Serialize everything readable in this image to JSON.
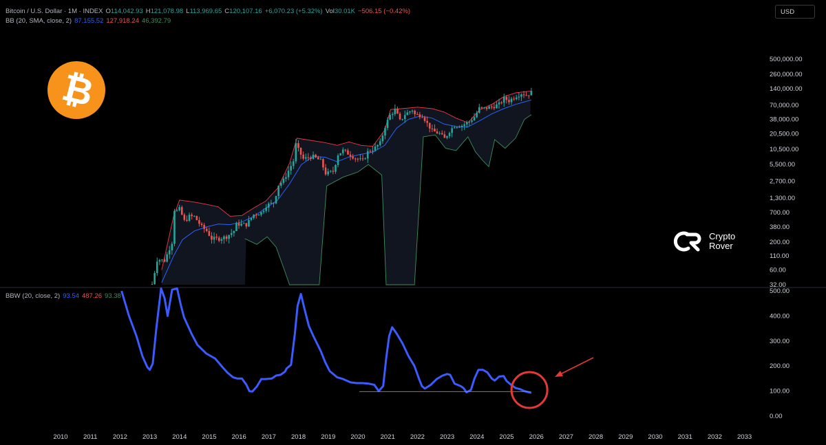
{
  "header": {
    "symbol": "Bitcoin / U.S. Dollar · 1M · INDEX",
    "open_label": "O",
    "open": "114,042.93",
    "high_label": "H",
    "high": "121,078.98",
    "low_label": "L",
    "low": "113,969.65",
    "close_label": "C",
    "close": "120,107.16",
    "change": "+6,070.23 (+5.32%)",
    "vol_label": "Vol",
    "vol": "30.01K",
    "vol_change": "−506.15 (−0.42%)"
  },
  "bb_legend": {
    "name": "BB (20, SMA, close, 2)",
    "basis": "87,155.52",
    "upper": "127,918.24",
    "lower": "46,392.79"
  },
  "bbw_legend": {
    "name": "BBW (20, close, 2)",
    "value": "93.54",
    "high": "487.26",
    "low": "93.38"
  },
  "currency": "USD",
  "brand": {
    "name": "Crypto Rover",
    "line1": "Crypto",
    "line2": "Rover",
    "logo_icon": "crypto-rover-logo-icon",
    "coin_icon": "bitcoin-logo-icon"
  },
  "colors": {
    "background": "#000000",
    "up": "#26a69a",
    "down": "#ef5350",
    "basis": "#2962ff",
    "upper": "#f23645",
    "lower": "#3e8e5e",
    "bbw": "#3b5bff",
    "coin": "#f7931a",
    "annotation": "#e53935"
  },
  "chart_data": [
    {
      "type": "candlestick",
      "title": "Bitcoin / U.S. Dollar · 1M · INDEX",
      "y_scale": "log",
      "y_ticks": [
        "500,000.00",
        "260,000.00",
        "140,000.00",
        "70,000.00",
        "38,000.00",
        "20,500.00",
        "10,500.00",
        "5,500.00",
        "2,700.00",
        "1,300.00",
        "700.00",
        "380.00",
        "200.00",
        "110.00",
        "60.00",
        "32.00"
      ],
      "y_tick_values": [
        500000,
        260000,
        140000,
        70000,
        38000,
        20500,
        10500,
        5500,
        2700,
        1300,
        700,
        380,
        200,
        110,
        60,
        32
      ],
      "x_ticks": [
        "2010",
        "2011",
        "2012",
        "2013",
        "2014",
        "2015",
        "2016",
        "2017",
        "2018",
        "2019",
        "2020",
        "2021",
        "2022",
        "2023",
        "2024",
        "2025",
        "2026",
        "2027",
        "2028",
        "2029",
        "2030",
        "2031",
        "2032",
        "2033"
      ],
      "price_close": [
        [
          2013.0,
          20
        ],
        [
          2013.25,
          95
        ],
        [
          2013.5,
          90
        ],
        [
          2013.75,
          200
        ],
        [
          2013.83,
          800
        ],
        [
          2013.92,
          750
        ],
        [
          2014.0,
          820
        ],
        [
          2014.17,
          480
        ],
        [
          2014.33,
          600
        ],
        [
          2014.5,
          590
        ],
        [
          2014.75,
          380
        ],
        [
          2014.92,
          320
        ],
        [
          2015.08,
          230
        ],
        [
          2015.33,
          230
        ],
        [
          2015.58,
          250
        ],
        [
          2015.83,
          320
        ],
        [
          2015.92,
          430
        ],
        [
          2016.25,
          420
        ],
        [
          2016.5,
          650
        ],
        [
          2016.75,
          700
        ],
        [
          2016.92,
          960
        ],
        [
          2017.17,
          1070
        ],
        [
          2017.33,
          2300
        ],
        [
          2017.5,
          2800
        ],
        [
          2017.67,
          4300
        ],
        [
          2017.83,
          6400
        ],
        [
          2017.92,
          13800
        ],
        [
          2018.0,
          10200
        ],
        [
          2018.17,
          6900
        ],
        [
          2018.33,
          7500
        ],
        [
          2018.5,
          7700
        ],
        [
          2018.75,
          6400
        ],
        [
          2018.92,
          3700
        ],
        [
          2019.17,
          4100
        ],
        [
          2019.33,
          8500
        ],
        [
          2019.5,
          10000
        ],
        [
          2019.75,
          8300
        ],
        [
          2019.92,
          7200
        ],
        [
          2020.17,
          6400
        ],
        [
          2020.33,
          9400
        ],
        [
          2020.58,
          11300
        ],
        [
          2020.75,
          13800
        ],
        [
          2020.92,
          29000
        ],
        [
          2021.08,
          45000
        ],
        [
          2021.25,
          57700
        ],
        [
          2021.42,
          35000
        ],
        [
          2021.58,
          47000
        ],
        [
          2021.83,
          57000
        ],
        [
          2021.92,
          46000
        ],
        [
          2022.17,
          45500
        ],
        [
          2022.33,
          31800
        ],
        [
          2022.5,
          23300
        ],
        [
          2022.75,
          20500
        ],
        [
          2022.92,
          16500
        ],
        [
          2023.08,
          23100
        ],
        [
          2023.25,
          29200
        ],
        [
          2023.5,
          29200
        ],
        [
          2023.75,
          34600
        ],
        [
          2023.92,
          42300
        ],
        [
          2024.08,
          61100
        ],
        [
          2024.25,
          60600
        ],
        [
          2024.5,
          64600
        ],
        [
          2024.75,
          72300
        ],
        [
          2024.92,
          93400
        ],
        [
          2025.08,
          84300
        ],
        [
          2025.33,
          104600
        ],
        [
          2025.5,
          115700
        ],
        [
          2025.67,
          108200
        ],
        [
          2025.75,
          114040
        ],
        [
          2025.83,
          120107
        ]
      ],
      "bb_basis": [
        [
          2013.4,
          35
        ],
        [
          2013.8,
          110
        ],
        [
          2014.1,
          220
        ],
        [
          2014.5,
          320
        ],
        [
          2014.9,
          380
        ],
        [
          2015.3,
          430
        ],
        [
          2015.7,
          420
        ],
        [
          2016.1,
          470
        ],
        [
          2016.5,
          600
        ],
        [
          2016.9,
          850
        ],
        [
          2017.3,
          1200
        ],
        [
          2017.7,
          2400
        ],
        [
          2018.1,
          5500
        ],
        [
          2018.5,
          7800
        ],
        [
          2018.9,
          7500
        ],
        [
          2019.3,
          6200
        ],
        [
          2019.7,
          7600
        ],
        [
          2020.1,
          8500
        ],
        [
          2020.5,
          9300
        ],
        [
          2020.9,
          12500
        ],
        [
          2021.3,
          26000
        ],
        [
          2021.7,
          38000
        ],
        [
          2022.1,
          44000
        ],
        [
          2022.5,
          40000
        ],
        [
          2022.9,
          31000
        ],
        [
          2023.3,
          28000
        ],
        [
          2023.7,
          27500
        ],
        [
          2024.1,
          36000
        ],
        [
          2024.5,
          48000
        ],
        [
          2024.9,
          60000
        ],
        [
          2025.3,
          72000
        ],
        [
          2025.83,
          87155.52
        ]
      ],
      "bb_upper": [
        [
          2013.4,
          60
        ],
        [
          2013.8,
          600
        ],
        [
          2014.0,
          1200
        ],
        [
          2014.5,
          1100
        ],
        [
          2014.9,
          1000
        ],
        [
          2015.3,
          900
        ],
        [
          2015.7,
          600
        ],
        [
          2016.1,
          620
        ],
        [
          2016.5,
          860
        ],
        [
          2016.9,
          1150
        ],
        [
          2017.3,
          2000
        ],
        [
          2017.7,
          5800
        ],
        [
          2017.95,
          17000
        ],
        [
          2018.4,
          15500
        ],
        [
          2018.9,
          14000
        ],
        [
          2019.3,
          12500
        ],
        [
          2019.7,
          14500
        ],
        [
          2020.1,
          12500
        ],
        [
          2020.5,
          12000
        ],
        [
          2020.9,
          24000
        ],
        [
          2021.1,
          58000
        ],
        [
          2021.6,
          61000
        ],
        [
          2022.0,
          64000
        ],
        [
          2022.5,
          60000
        ],
        [
          2022.9,
          52000
        ],
        [
          2023.3,
          40000
        ],
        [
          2023.7,
          33000
        ],
        [
          2024.1,
          58000
        ],
        [
          2024.5,
          72000
        ],
        [
          2024.9,
          100000
        ],
        [
          2025.3,
          118000
        ],
        [
          2025.83,
          127918.24
        ]
      ],
      "bb_lower": [
        [
          2016.2,
          230
        ],
        [
          2016.6,
          180
        ],
        [
          2016.95,
          250
        ],
        [
          2017.25,
          160
        ],
        [
          2017.55,
          55
        ],
        [
          2017.7,
          32
        ],
        [
          2018.7,
          32
        ],
        [
          2018.95,
          2200
        ],
        [
          2019.5,
          3200
        ],
        [
          2020.0,
          4000
        ],
        [
          2020.35,
          5500
        ],
        [
          2020.8,
          3500
        ],
        [
          2020.95,
          32
        ],
        [
          2021.9,
          32
        ],
        [
          2022.2,
          18000
        ],
        [
          2022.6,
          19500
        ],
        [
          2022.95,
          11000
        ],
        [
          2023.3,
          10000
        ],
        [
          2023.7,
          18000
        ],
        [
          2023.95,
          9500
        ],
        [
          2024.2,
          6500
        ],
        [
          2024.4,
          5000
        ],
        [
          2024.6,
          16000
        ],
        [
          2024.95,
          11000
        ],
        [
          2025.3,
          17000
        ],
        [
          2025.6,
          38000
        ],
        [
          2025.83,
          46392.79
        ]
      ]
    },
    {
      "type": "line",
      "title": "BBW (20, close, 2)",
      "ylim": [
        0,
        500
      ],
      "y_ticks": [
        "500.00",
        "400.00",
        "300.00",
        "200.00",
        "100.00",
        "0.00"
      ],
      "y_tick_values": [
        500,
        400,
        300,
        200,
        100,
        0
      ],
      "series": [
        {
          "name": "BBW (20, close, 2)",
          "points": [
            [
              2012.05,
              500
            ],
            [
              2012.3,
              400
            ],
            [
              2012.55,
              320
            ],
            [
              2012.75,
              240
            ],
            [
              2012.92,
              195
            ],
            [
              2013.0,
              185
            ],
            [
              2013.1,
              210
            ],
            [
              2013.22,
              350
            ],
            [
              2013.38,
              510
            ],
            [
              2013.5,
              470
            ],
            [
              2013.6,
              400
            ],
            [
              2013.75,
              505
            ],
            [
              2013.92,
              510
            ],
            [
              2014.05,
              440
            ],
            [
              2014.15,
              395
            ],
            [
              2014.4,
              330
            ],
            [
              2014.6,
              285
            ],
            [
              2014.9,
              250
            ],
            [
              2015.2,
              230
            ],
            [
              2015.45,
              195
            ],
            [
              2015.6,
              175
            ],
            [
              2015.8,
              155
            ],
            [
              2015.95,
              150
            ],
            [
              2016.1,
              150
            ],
            [
              2016.25,
              125
            ],
            [
              2016.35,
              100
            ],
            [
              2016.45,
              98
            ],
            [
              2016.6,
              118
            ],
            [
              2016.75,
              148
            ],
            [
              2016.9,
              148
            ],
            [
              2017.1,
              150
            ],
            [
              2017.25,
              162
            ],
            [
              2017.4,
              165
            ],
            [
              2017.55,
              178
            ],
            [
              2017.6,
              190
            ],
            [
              2017.75,
              205
            ],
            [
              2017.88,
              330
            ],
            [
              2017.97,
              440
            ],
            [
              2018.08,
              488
            ],
            [
              2018.2,
              430
            ],
            [
              2018.35,
              360
            ],
            [
              2018.5,
              320
            ],
            [
              2018.75,
              260
            ],
            [
              2018.9,
              215
            ],
            [
              2019.05,
              180
            ],
            [
              2019.3,
              155
            ],
            [
              2019.5,
              148
            ],
            [
              2019.75,
              135
            ],
            [
              2019.95,
              132
            ],
            [
              2020.15,
              132
            ],
            [
              2020.35,
              130
            ],
            [
              2020.55,
              125
            ],
            [
              2020.7,
              100
            ],
            [
              2020.85,
              120
            ],
            [
              2020.95,
              230
            ],
            [
              2021.05,
              320
            ],
            [
              2021.15,
              355
            ],
            [
              2021.3,
              330
            ],
            [
              2021.5,
              290
            ],
            [
              2021.7,
              240
            ],
            [
              2021.9,
              200
            ],
            [
              2022.05,
              150
            ],
            [
              2022.15,
              120
            ],
            [
              2022.25,
              110
            ],
            [
              2022.45,
              125
            ],
            [
              2022.65,
              148
            ],
            [
              2022.85,
              162
            ],
            [
              2023.0,
              168
            ],
            [
              2023.1,
              165
            ],
            [
              2023.25,
              130
            ],
            [
              2023.45,
              120
            ],
            [
              2023.55,
              112
            ],
            [
              2023.65,
              95
            ],
            [
              2023.8,
              105
            ],
            [
              2023.92,
              150
            ],
            [
              2024.05,
              185
            ],
            [
              2024.2,
              185
            ],
            [
              2024.35,
              175
            ],
            [
              2024.5,
              150
            ],
            [
              2024.6,
              142
            ],
            [
              2024.75,
              158
            ],
            [
              2024.9,
              160
            ],
            [
              2025.0,
              140
            ],
            [
              2025.15,
              125
            ],
            [
              2025.3,
              112
            ],
            [
              2025.45,
              108
            ],
            [
              2025.6,
              100
            ],
            [
              2025.72,
              96
            ],
            [
              2025.83,
              93.54
            ]
          ]
        }
      ],
      "baseline_from": 2020.05,
      "baseline_to": 2025.8,
      "baseline_value": 98,
      "highlight_x": 2025.72,
      "highlight_y": 96
    }
  ]
}
